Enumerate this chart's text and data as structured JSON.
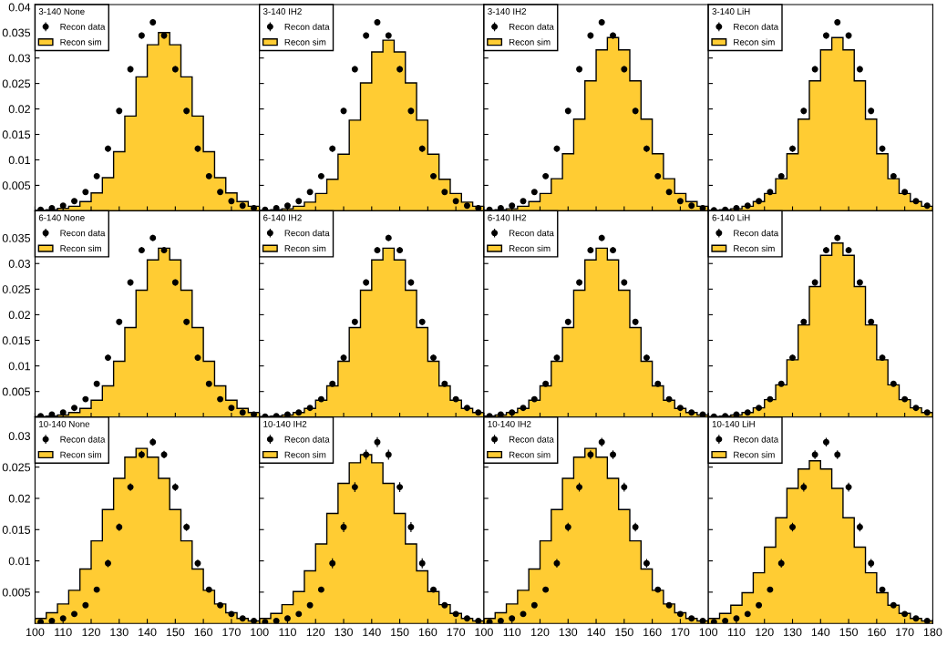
{
  "chart_data": [
    {
      "type": "histogram",
      "legend_title": "3-140 None",
      "legend": "top left",
      "bins": [
        100,
        104,
        108,
        112,
        116,
        120,
        124,
        128,
        132,
        136,
        140,
        144,
        148,
        152,
        156,
        160,
        164,
        168,
        172,
        176,
        180
      ],
      "xlim": [
        100,
        180
      ],
      "ylim": [
        0,
        0.0405
      ],
      "xticks": [
        100,
        110,
        120,
        130,
        140,
        150,
        160,
        170,
        180
      ],
      "yticks": [
        {
          "value": 0,
          "label": null
        },
        0.005,
        0.01,
        0.015,
        0.02,
        0.025,
        0.03,
        0.035,
        0.04
      ],
      "tick_labels": "y",
      "series": [
        {
          "name": "Recon data",
          "type": "scatter",
          "marker": "circle",
          "color": "#000000",
          "x": [
            102,
            106,
            110,
            114,
            118,
            122,
            126,
            130,
            134,
            138,
            142,
            146,
            150,
            154,
            158,
            162,
            166,
            170,
            174,
            178
          ],
          "values": [
            0.0002,
            0.0005,
            0.001,
            0.0019,
            0.0037,
            0.0068,
            0.0122,
            0.0196,
            0.0278,
            0.0344,
            0.037,
            0.0344,
            0.0278,
            0.0196,
            0.0122,
            0.0068,
            0.0037,
            0.0019,
            0.001,
            0.0005
          ],
          "errors": [
            null,
            null,
            null,
            null,
            null,
            null,
            0.0006,
            0.0006,
            0.0006,
            0.0006,
            0.0006,
            0.0006,
            0.0006,
            0.0006,
            0.0006,
            null,
            null,
            null,
            null,
            null
          ]
        },
        {
          "name": "Recon sim",
          "color": "#ffcc33",
          "values": [
            0.0001,
            0.0002,
            0.0005,
            0.0009,
            0.0018,
            0.0035,
            0.0065,
            0.0116,
            0.0186,
            0.0263,
            0.0326,
            0.035,
            0.0326,
            0.0263,
            0.0186,
            0.0116,
            0.0065,
            0.0035,
            0.0018,
            0.0009
          ]
        }
      ]
    },
    {
      "type": "histogram",
      "legend_title": "3-140 IH2",
      "legend": "top left",
      "bins": [
        100,
        104,
        108,
        112,
        116,
        120,
        124,
        128,
        132,
        136,
        140,
        144,
        148,
        152,
        156,
        160,
        164,
        168,
        172,
        176,
        180
      ],
      "xlim": [
        100,
        180
      ],
      "ylim": [
        0,
        0.0405
      ],
      "xticks": [
        100,
        110,
        120,
        130,
        140,
        150,
        160,
        170,
        180
      ],
      "yticks": [
        0,
        0.005,
        0.01,
        0.015,
        0.02,
        0.025,
        0.03,
        0.035,
        0.04
      ],
      "tick_labels": false,
      "series": [
        {
          "name": "Recon data",
          "type": "scatter",
          "marker": "circle",
          "color": "#000000",
          "x": [
            102,
            106,
            110,
            114,
            118,
            122,
            126,
            130,
            134,
            138,
            142,
            146,
            150,
            154,
            158,
            162,
            166,
            170,
            174,
            178
          ],
          "values": [
            0.0002,
            0.0005,
            0.001,
            0.0019,
            0.0037,
            0.0068,
            0.0122,
            0.0196,
            0.0278,
            0.0344,
            0.037,
            0.0344,
            0.0278,
            0.0196,
            0.0122,
            0.0068,
            0.0037,
            0.0019,
            0.001,
            0.0005
          ],
          "errors": [
            null,
            null,
            null,
            null,
            null,
            null,
            0.0006,
            0.0006,
            0.0006,
            0.0006,
            0.0006,
            0.0006,
            0.0006,
            0.0006,
            0.0006,
            null,
            null,
            null,
            null,
            null
          ]
        },
        {
          "name": "Recon sim",
          "color": "#ffcc33",
          "values": [
            0.0001,
            0.0002,
            0.0004,
            0.0009,
            0.0017,
            0.0034,
            0.0062,
            0.0111,
            0.0178,
            0.0251,
            0.0312,
            0.0335,
            0.0312,
            0.0251,
            0.0178,
            0.0111,
            0.0062,
            0.0034,
            0.0017,
            0.0009
          ]
        }
      ]
    },
    {
      "type": "histogram",
      "legend_title": "3-140 IH2",
      "legend": "top left",
      "bins": [
        100,
        104,
        108,
        112,
        116,
        120,
        124,
        128,
        132,
        136,
        140,
        144,
        148,
        152,
        156,
        160,
        164,
        168,
        172,
        176,
        180
      ],
      "xlim": [
        100,
        180
      ],
      "ylim": [
        0,
        0.0405
      ],
      "xticks": [
        100,
        110,
        120,
        130,
        140,
        150,
        160,
        170,
        180
      ],
      "yticks": [
        0,
        0.005,
        0.01,
        0.015,
        0.02,
        0.025,
        0.03,
        0.035,
        0.04
      ],
      "tick_labels": false,
      "series": [
        {
          "name": "Recon data",
          "type": "scatter",
          "marker": "circle",
          "color": "#000000",
          "x": [
            102,
            106,
            110,
            114,
            118,
            122,
            126,
            130,
            134,
            138,
            142,
            146,
            150,
            154,
            158,
            162,
            166,
            170,
            174,
            178
          ],
          "values": [
            0.0002,
            0.0005,
            0.001,
            0.0019,
            0.0037,
            0.0068,
            0.0122,
            0.0196,
            0.0278,
            0.0344,
            0.037,
            0.0344,
            0.0278,
            0.0196,
            0.0122,
            0.0068,
            0.0037,
            0.0019,
            0.001,
            0.0005
          ],
          "errors": [
            null,
            null,
            null,
            null,
            null,
            null,
            0.0006,
            0.0006,
            0.0006,
            0.0006,
            0.0006,
            0.0006,
            0.0006,
            0.0006,
            0.0006,
            null,
            null,
            null,
            null,
            null
          ]
        },
        {
          "name": "Recon sim",
          "color": "#ffcc33",
          "values": [
            0.0001,
            0.0002,
            0.0004,
            0.0009,
            0.0018,
            0.0034,
            0.0063,
            0.0112,
            0.018,
            0.0255,
            0.0316,
            0.034,
            0.0316,
            0.0255,
            0.018,
            0.0112,
            0.0063,
            0.0034,
            0.0018,
            0.0009
          ]
        }
      ]
    },
    {
      "type": "histogram",
      "legend_title": "3-140 LiH",
      "legend": "top left",
      "bins": [
        100,
        104,
        108,
        112,
        116,
        120,
        124,
        128,
        132,
        136,
        140,
        144,
        148,
        152,
        156,
        160,
        164,
        168,
        172,
        176,
        180
      ],
      "xlim": [
        100,
        180
      ],
      "ylim": [
        0,
        0.0405
      ],
      "xticks": [
        100,
        110,
        120,
        130,
        140,
        150,
        160,
        170,
        180
      ],
      "yticks": [
        0,
        0.005,
        0.01,
        0.015,
        0.02,
        0.025,
        0.03,
        0.035,
        0.04
      ],
      "tick_labels": false,
      "series": [
        {
          "name": "Recon data",
          "type": "scatter",
          "marker": "circle",
          "color": "#000000",
          "x": [
            102,
            106,
            110,
            114,
            118,
            122,
            126,
            130,
            134,
            138,
            142,
            146,
            150,
            154,
            158,
            162,
            166,
            170,
            174,
            178
          ],
          "values": [
            0.0001,
            0.0002,
            0.0005,
            0.001,
            0.0019,
            0.0037,
            0.0068,
            0.0122,
            0.0196,
            0.0278,
            0.0344,
            0.037,
            0.0344,
            0.0278,
            0.0196,
            0.0122,
            0.0068,
            0.0037,
            0.0019,
            0.001
          ],
          "errors": [
            null,
            null,
            null,
            null,
            null,
            null,
            null,
            0.0006,
            0.0006,
            0.0006,
            0.0006,
            0.0006,
            0.0006,
            0.0006,
            0.0006,
            0.0006,
            null,
            null,
            null,
            null
          ]
        },
        {
          "name": "Recon sim",
          "color": "#ffcc33",
          "values": [
            0.0001,
            0.0002,
            0.0004,
            0.0009,
            0.0018,
            0.0034,
            0.0063,
            0.0112,
            0.018,
            0.0255,
            0.0316,
            0.034,
            0.0316,
            0.0255,
            0.018,
            0.0112,
            0.0063,
            0.0034,
            0.0018,
            0.0009
          ]
        }
      ]
    },
    {
      "type": "histogram",
      "legend_title": "6-140 None",
      "legend": "top left",
      "bins": [
        100,
        104,
        108,
        112,
        116,
        120,
        124,
        128,
        132,
        136,
        140,
        144,
        148,
        152,
        156,
        160,
        164,
        168,
        172,
        176,
        180
      ],
      "xlim": [
        100,
        180
      ],
      "ylim": [
        0,
        0.0403
      ],
      "xticks": [
        100,
        110,
        120,
        130,
        140,
        150,
        160,
        170,
        180
      ],
      "yticks": [
        {
          "value": 0,
          "label": null
        },
        0.005,
        0.01,
        0.015,
        0.02,
        0.025,
        0.03,
        0.035
      ],
      "tick_labels": "y",
      "series": [
        {
          "name": "Recon data",
          "type": "scatter",
          "marker": "circle",
          "color": "#000000",
          "x": [
            102,
            106,
            110,
            114,
            118,
            122,
            126,
            130,
            134,
            138,
            142,
            146,
            150,
            154,
            158,
            162,
            166,
            170,
            174,
            178
          ],
          "values": [
            0.0002,
            0.0005,
            0.0009,
            0.0018,
            0.0035,
            0.0065,
            0.0116,
            0.0186,
            0.0263,
            0.0326,
            0.035,
            0.0326,
            0.0263,
            0.0186,
            0.0116,
            0.0065,
            0.0035,
            0.0018,
            0.0009,
            0.0005
          ],
          "errors": [
            null,
            null,
            null,
            null,
            null,
            null,
            0.0006,
            0.0006,
            0.0006,
            0.0006,
            0.0006,
            0.0006,
            0.0006,
            0.0006,
            0.0006,
            null,
            null,
            null,
            null,
            null
          ]
        },
        {
          "name": "Recon sim",
          "color": "#ffcc33",
          "values": [
            0.0001,
            0.0002,
            0.0004,
            0.0009,
            0.0017,
            0.0033,
            0.0061,
            0.0109,
            0.0175,
            0.0248,
            0.0307,
            0.033,
            0.0307,
            0.0248,
            0.0175,
            0.0109,
            0.0061,
            0.0033,
            0.0017,
            0.0009
          ]
        }
      ]
    },
    {
      "type": "histogram",
      "legend_title": "6-140 IH2",
      "legend": "top left",
      "bins": [
        100,
        104,
        108,
        112,
        116,
        120,
        124,
        128,
        132,
        136,
        140,
        144,
        148,
        152,
        156,
        160,
        164,
        168,
        172,
        176,
        180
      ],
      "xlim": [
        100,
        180
      ],
      "ylim": [
        0,
        0.0403
      ],
      "xticks": [
        100,
        110,
        120,
        130,
        140,
        150,
        160,
        170,
        180
      ],
      "yticks": [
        0,
        0.005,
        0.01,
        0.015,
        0.02,
        0.025,
        0.03,
        0.035
      ],
      "tick_labels": false,
      "series": [
        {
          "name": "Recon data",
          "type": "scatter",
          "marker": "circle",
          "color": "#000000",
          "x": [
            102,
            106,
            110,
            114,
            118,
            122,
            126,
            130,
            134,
            138,
            142,
            146,
            150,
            154,
            158,
            162,
            166,
            170,
            174,
            178
          ],
          "values": [
            0.0001,
            0.0002,
            0.0005,
            0.0009,
            0.0018,
            0.0035,
            0.0065,
            0.0116,
            0.0186,
            0.0263,
            0.0326,
            0.035,
            0.0326,
            0.0263,
            0.0186,
            0.0116,
            0.0065,
            0.0035,
            0.0018,
            0.0009
          ],
          "errors": [
            null,
            null,
            null,
            null,
            null,
            null,
            null,
            0.0006,
            0.0006,
            0.0006,
            0.0006,
            0.0006,
            0.0006,
            0.0006,
            0.0006,
            0.0006,
            null,
            null,
            null,
            null
          ]
        },
        {
          "name": "Recon sim",
          "color": "#ffcc33",
          "values": [
            0.0001,
            0.0002,
            0.0004,
            0.0009,
            0.0017,
            0.0033,
            0.0061,
            0.0109,
            0.0175,
            0.0248,
            0.0307,
            0.033,
            0.0307,
            0.0248,
            0.0175,
            0.0109,
            0.0061,
            0.0033,
            0.0017,
            0.0009
          ]
        }
      ]
    },
    {
      "type": "histogram",
      "legend_title": "6-140 IH2",
      "legend": "top left",
      "bins": [
        100,
        104,
        108,
        112,
        116,
        120,
        124,
        128,
        132,
        136,
        140,
        144,
        148,
        152,
        156,
        160,
        164,
        168,
        172,
        176,
        180
      ],
      "xlim": [
        100,
        180
      ],
      "ylim": [
        0,
        0.0403
      ],
      "xticks": [
        100,
        110,
        120,
        130,
        140,
        150,
        160,
        170,
        180
      ],
      "yticks": [
        0,
        0.005,
        0.01,
        0.015,
        0.02,
        0.025,
        0.03,
        0.035
      ],
      "tick_labels": false,
      "series": [
        {
          "name": "Recon data",
          "type": "scatter",
          "marker": "circle",
          "color": "#000000",
          "x": [
            102,
            106,
            110,
            114,
            118,
            122,
            126,
            130,
            134,
            138,
            142,
            146,
            150,
            154,
            158,
            162,
            166,
            170,
            174,
            178
          ],
          "values": [
            0.0002,
            0.0005,
            0.0009,
            0.0018,
            0.0035,
            0.0065,
            0.0116,
            0.0186,
            0.0263,
            0.0326,
            0.035,
            0.0326,
            0.0263,
            0.0186,
            0.0116,
            0.0065,
            0.0035,
            0.0018,
            0.0009,
            0.0005
          ],
          "errors": [
            null,
            null,
            null,
            null,
            null,
            null,
            0.0006,
            0.0006,
            0.0006,
            0.0006,
            0.0006,
            0.0006,
            0.0006,
            0.0006,
            0.0006,
            null,
            null,
            null,
            null,
            null
          ]
        },
        {
          "name": "Recon sim",
          "color": "#ffcc33",
          "values": [
            0.0002,
            0.0004,
            0.0009,
            0.0017,
            0.0033,
            0.0061,
            0.0109,
            0.0175,
            0.0248,
            0.0307,
            0.033,
            0.0307,
            0.0248,
            0.0175,
            0.0109,
            0.0061,
            0.0033,
            0.0017,
            0.0009,
            0.0004
          ]
        }
      ]
    },
    {
      "type": "histogram",
      "legend_title": "6-140 LiH",
      "legend": "top left",
      "bins": [
        100,
        104,
        108,
        112,
        116,
        120,
        124,
        128,
        132,
        136,
        140,
        144,
        148,
        152,
        156,
        160,
        164,
        168,
        172,
        176,
        180
      ],
      "xlim": [
        100,
        180
      ],
      "ylim": [
        0,
        0.0403
      ],
      "xticks": [
        100,
        110,
        120,
        130,
        140,
        150,
        160,
        170,
        180
      ],
      "yticks": [
        0,
        0.005,
        0.01,
        0.015,
        0.02,
        0.025,
        0.03,
        0.035
      ],
      "tick_labels": false,
      "series": [
        {
          "name": "Recon data",
          "type": "scatter",
          "marker": "circle",
          "color": "#000000",
          "x": [
            102,
            106,
            110,
            114,
            118,
            122,
            126,
            130,
            134,
            138,
            142,
            146,
            150,
            154,
            158,
            162,
            166,
            170,
            174,
            178
          ],
          "values": [
            0.0001,
            0.0002,
            0.0005,
            0.0009,
            0.0018,
            0.0035,
            0.0065,
            0.0116,
            0.0186,
            0.0263,
            0.0326,
            0.035,
            0.0326,
            0.0263,
            0.0186,
            0.0116,
            0.0065,
            0.0035,
            0.0018,
            0.0009
          ],
          "errors": [
            null,
            null,
            null,
            null,
            null,
            null,
            null,
            0.0006,
            0.0006,
            0.0006,
            0.0006,
            0.0006,
            0.0006,
            0.0006,
            0.0006,
            0.0006,
            null,
            null,
            null,
            null
          ]
        },
        {
          "name": "Recon sim",
          "color": "#ffcc33",
          "values": [
            0.0001,
            0.0002,
            0.0004,
            0.0009,
            0.0018,
            0.0034,
            0.0063,
            0.0112,
            0.018,
            0.0255,
            0.0316,
            0.034,
            0.0316,
            0.0255,
            0.018,
            0.0112,
            0.0063,
            0.0034,
            0.0018,
            0.0009
          ]
        }
      ]
    },
    {
      "type": "histogram",
      "legend_title": "10-140 None",
      "legend": "top left",
      "bins": [
        100,
        104,
        108,
        112,
        116,
        120,
        124,
        128,
        132,
        136,
        140,
        144,
        148,
        152,
        156,
        160,
        164,
        168,
        172,
        176,
        180
      ],
      "xlim": [
        100,
        180
      ],
      "ylim": [
        0,
        0.033
      ],
      "xticks": [
        100,
        110,
        120,
        130,
        140,
        150,
        160,
        170
      ],
      "yticks": [
        0.005,
        0.01,
        0.015,
        0.02,
        0.025,
        0.03
      ],
      "series": [
        {
          "name": "Recon data",
          "type": "scatter",
          "marker": "circle",
          "color": "#000000",
          "x": [
            102,
            106,
            110,
            114,
            118,
            122,
            126,
            130,
            134,
            138,
            142,
            146,
            150,
            154,
            158,
            162,
            166,
            170,
            174,
            178
          ],
          "values": [
            0.0002,
            0.0004,
            0.0008,
            0.0015,
            0.0029,
            0.0054,
            0.0096,
            0.0154,
            0.0218,
            0.027,
            0.029,
            0.027,
            0.0218,
            0.0154,
            0.0096,
            0.0054,
            0.0029,
            0.0015,
            0.0008,
            0.0004
          ],
          "errors": [
            null,
            null,
            null,
            null,
            null,
            null,
            0.0006,
            0.0006,
            0.0006,
            0.0006,
            0.0006,
            0.0006,
            0.0006,
            0.0006,
            0.0006,
            null,
            null,
            null,
            null,
            null
          ]
        },
        {
          "name": "Recon sim",
          "color": "#ffcc33",
          "values": [
            0.0008,
            0.0017,
            0.0031,
            0.0053,
            0.0087,
            0.0132,
            0.0182,
            0.0232,
            0.0266,
            0.028,
            0.0266,
            0.0232,
            0.0182,
            0.0132,
            0.0087,
            0.0053,
            0.0031,
            0.0017,
            0.0008,
            0.0004
          ]
        }
      ]
    },
    {
      "type": "histogram",
      "legend_title": "10-140 IH2",
      "legend": "top left",
      "bins": [
        100,
        104,
        108,
        112,
        116,
        120,
        124,
        128,
        132,
        136,
        140,
        144,
        148,
        152,
        156,
        160,
        164,
        168,
        172,
        176,
        180
      ],
      "xlim": [
        100,
        180
      ],
      "ylim": [
        0,
        0.033
      ],
      "xticks": [
        100,
        110,
        120,
        130,
        140,
        150,
        160,
        170
      ],
      "yticks": [
        0.005,
        0.01,
        0.015,
        0.02,
        0.025,
        0.03
      ],
      "tick_labels": "x",
      "series": [
        {
          "name": "Recon data",
          "type": "scatter",
          "marker": "circle",
          "color": "#000000",
          "x": [
            102,
            106,
            110,
            114,
            118,
            122,
            126,
            130,
            134,
            138,
            142,
            146,
            150,
            154,
            158,
            162,
            166,
            170,
            174,
            178
          ],
          "values": [
            0.0002,
            0.0004,
            0.0008,
            0.0015,
            0.0029,
            0.0054,
            0.0096,
            0.0154,
            0.0218,
            0.027,
            0.029,
            0.027,
            0.0218,
            0.0154,
            0.0096,
            0.0054,
            0.0029,
            0.0015,
            0.0008,
            0.0004
          ],
          "errors": [
            null,
            null,
            null,
            null,
            null,
            null,
            0.0008,
            0.0008,
            0.0008,
            0.0008,
            0.0008,
            0.0008,
            0.0008,
            0.0008,
            0.0008,
            null,
            null,
            null,
            null,
            null
          ]
        },
        {
          "name": "Recon sim",
          "color": "#ffcc33",
          "values": [
            0.0008,
            0.0016,
            0.003,
            0.0051,
            0.0084,
            0.0127,
            0.0176,
            0.0224,
            0.0257,
            0.027,
            0.0257,
            0.0224,
            0.0176,
            0.0127,
            0.0084,
            0.0051,
            0.003,
            0.0016,
            0.0008,
            0.0004
          ]
        }
      ]
    },
    {
      "type": "histogram",
      "legend_title": "10-140 IH2",
      "legend": "top left",
      "bins": [
        100,
        104,
        108,
        112,
        116,
        120,
        124,
        128,
        132,
        136,
        140,
        144,
        148,
        152,
        156,
        160,
        164,
        168,
        172,
        176,
        180
      ],
      "xlim": [
        100,
        180
      ],
      "ylim": [
        0,
        0.033
      ],
      "xticks": [
        100,
        110,
        120,
        130,
        140,
        150,
        160,
        170
      ],
      "yticks": [
        0.005,
        0.01,
        0.015,
        0.02,
        0.025,
        0.03
      ],
      "tick_labels": "x",
      "series": [
        {
          "name": "Recon data",
          "type": "scatter",
          "marker": "circle",
          "color": "#000000",
          "x": [
            102,
            106,
            110,
            114,
            118,
            122,
            126,
            130,
            134,
            138,
            142,
            146,
            150,
            154,
            158,
            162,
            166,
            170,
            174,
            178
          ],
          "values": [
            0.0002,
            0.0004,
            0.0008,
            0.0015,
            0.0029,
            0.0054,
            0.0096,
            0.0154,
            0.0218,
            0.027,
            0.029,
            0.027,
            0.0218,
            0.0154,
            0.0096,
            0.0054,
            0.0029,
            0.0015,
            0.0008,
            0.0004
          ],
          "errors": [
            null,
            null,
            null,
            null,
            null,
            null,
            0.0007,
            0.0007,
            0.0007,
            0.0007,
            0.0007,
            0.0007,
            0.0007,
            0.0007,
            0.0007,
            null,
            null,
            null,
            null,
            null
          ]
        },
        {
          "name": "Recon sim",
          "color": "#ffcc33",
          "values": [
            0.0008,
            0.0017,
            0.0031,
            0.0053,
            0.0087,
            0.0132,
            0.0182,
            0.0232,
            0.0266,
            0.028,
            0.0266,
            0.0232,
            0.0182,
            0.0132,
            0.0087,
            0.0053,
            0.0031,
            0.0017,
            0.0008,
            0.0004
          ]
        }
      ]
    },
    {
      "type": "histogram",
      "legend_title": "10-140 LiH",
      "legend": "top left",
      "bins": [
        100,
        104,
        108,
        112,
        116,
        120,
        124,
        128,
        132,
        136,
        140,
        144,
        148,
        152,
        156,
        160,
        164,
        168,
        172,
        176,
        180
      ],
      "xlim": [
        100,
        180
      ],
      "ylim": [
        0,
        0.033
      ],
      "xticks": [
        100,
        110,
        120,
        130,
        140,
        150,
        160,
        170,
        180
      ],
      "yticks": [
        0.005,
        0.01,
        0.015,
        0.02,
        0.025,
        0.03
      ],
      "tick_labels": "x",
      "series": [
        {
          "name": "Recon data",
          "type": "scatter",
          "marker": "circle",
          "color": "#000000",
          "x": [
            102,
            106,
            110,
            114,
            118,
            122,
            126,
            130,
            134,
            138,
            142,
            146,
            150,
            154,
            158,
            162,
            166,
            170,
            174,
            178
          ],
          "values": [
            0.0002,
            0.0004,
            0.0008,
            0.0015,
            0.0029,
            0.0054,
            0.0096,
            0.0154,
            0.0218,
            0.027,
            0.029,
            0.027,
            0.0218,
            0.0154,
            0.0096,
            0.0054,
            0.0029,
            0.0015,
            0.0008,
            0.0004
          ],
          "errors": [
            null,
            null,
            null,
            null,
            null,
            null,
            0.0007,
            0.0007,
            0.0007,
            0.0007,
            0.0007,
            0.0007,
            0.0007,
            0.0007,
            0.0007,
            null,
            null,
            null,
            null,
            null
          ]
        },
        {
          "name": "Recon sim",
          "color": "#ffcc33",
          "values": [
            0.0008,
            0.0016,
            0.0029,
            0.0049,
            0.0081,
            0.0122,
            0.0169,
            0.0216,
            0.0247,
            0.026,
            0.0247,
            0.0216,
            0.0169,
            0.0122,
            0.0081,
            0.0049,
            0.0029,
            0.0016,
            0.0008,
            0.0004
          ]
        }
      ]
    }
  ]
}
